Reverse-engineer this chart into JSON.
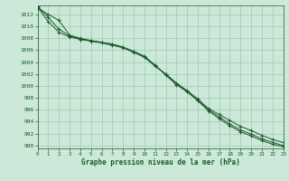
{
  "background_color": "#cbe8d8",
  "grid_color": "#a0c8b0",
  "line_color": "#1a5c2a",
  "xlabel": "Graphe pression niveau de la mer (hPa)",
  "xlim": [
    0,
    23
  ],
  "ylim": [
    989.5,
    1013.5
  ],
  "yticks": [
    990,
    992,
    994,
    996,
    998,
    1000,
    1002,
    1004,
    1006,
    1008,
    1010,
    1012
  ],
  "xticks": [
    0,
    1,
    2,
    3,
    4,
    5,
    6,
    7,
    8,
    9,
    10,
    11,
    12,
    13,
    14,
    15,
    16,
    17,
    18,
    19,
    20,
    21,
    22,
    23
  ],
  "series1": {
    "x": [
      0,
      1,
      2,
      3,
      4,
      5,
      6,
      7,
      8,
      9,
      10,
      11,
      12,
      13,
      14,
      15,
      16,
      17,
      18,
      19,
      20,
      21,
      22,
      23
    ],
    "y": [
      1013.2,
      1010.8,
      1009.0,
      1008.2,
      1007.8,
      1007.5,
      1007.2,
      1006.8,
      1006.4,
      1005.6,
      1004.8,
      1003.3,
      1002.0,
      1000.5,
      999.2,
      997.8,
      996.2,
      995.2,
      994.2,
      993.2,
      992.5,
      991.7,
      991.0,
      990.5
    ]
  },
  "series2": {
    "x": [
      0,
      1,
      2,
      3,
      4,
      5,
      6,
      7,
      8,
      9,
      10,
      11,
      12,
      13,
      14,
      15,
      16,
      17,
      18,
      19,
      20,
      21,
      22,
      23
    ],
    "y": [
      1013.1,
      1012.0,
      1011.0,
      1008.5,
      1008.0,
      1007.6,
      1007.3,
      1007.0,
      1006.5,
      1005.8,
      1005.0,
      1003.5,
      1001.8,
      1000.2,
      999.0,
      997.5,
      995.8,
      994.5,
      993.3,
      992.3,
      991.6,
      990.8,
      990.2,
      989.8
    ]
  },
  "series3": {
    "x": [
      0,
      1,
      2,
      3,
      4,
      5,
      6,
      7,
      8,
      9,
      10,
      11,
      12,
      13,
      14,
      15,
      16,
      17,
      18,
      19,
      20,
      21,
      22,
      23
    ],
    "y": [
      1013.3,
      1011.5,
      1009.5,
      1008.4,
      1007.9,
      1007.6,
      1007.3,
      1007.0,
      1006.5,
      1005.7,
      1004.9,
      1003.4,
      1001.9,
      1000.3,
      999.1,
      997.6,
      996.0,
      994.8,
      993.6,
      992.6,
      991.9,
      991.1,
      990.5,
      990.0
    ]
  }
}
